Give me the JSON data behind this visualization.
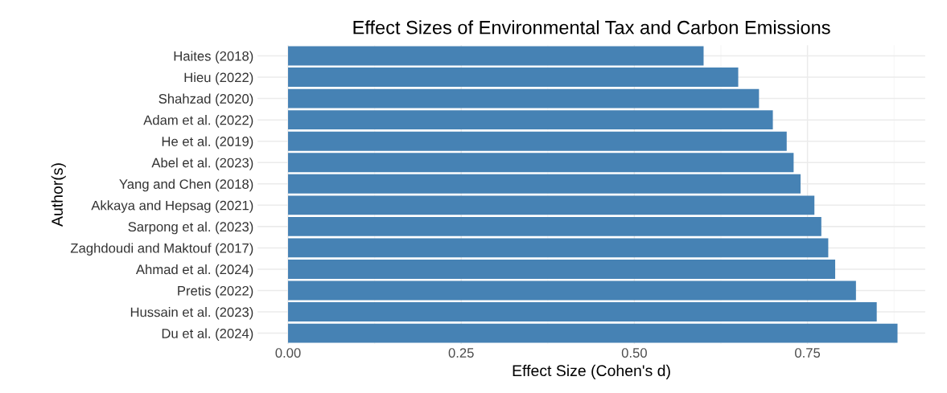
{
  "chart_data": {
    "type": "bar",
    "orientation": "horizontal",
    "title": "Effect Sizes of Environmental Tax and Carbon Emissions",
    "xlabel": "Effect Size (Cohen's d)",
    "ylabel": "Author(s)",
    "categories": [
      "Haites (2018)",
      "Hieu (2022)",
      "Shahzad (2020)",
      "Adam et al. (2022)",
      "He et al. (2019)",
      "Abel et al. (2023)",
      "Yang and Chen (2018)",
      "Akkaya and Hepsag (2021)",
      "Sarpong et al. (2023)",
      "Zaghdoudi and Maktouf (2017)",
      "Ahmad et al. (2024)",
      "Pretis (2022)",
      "Hussain et al. (2023)",
      "Du et al. (2024)"
    ],
    "values": [
      0.6,
      0.65,
      0.68,
      0.7,
      0.72,
      0.73,
      0.74,
      0.76,
      0.77,
      0.78,
      0.79,
      0.82,
      0.85,
      0.88
    ],
    "color": "#4682b4",
    "xlim": [
      -0.044,
      0.92
    ],
    "xticks": [
      {
        "value": 0,
        "label": "0.00"
      },
      {
        "value": 0.25,
        "label": "0.25"
      },
      {
        "value": 0.5,
        "label": "0.50"
      },
      {
        "value": 0.75,
        "label": "0.75"
      }
    ],
    "grid": true,
    "legend": false
  }
}
